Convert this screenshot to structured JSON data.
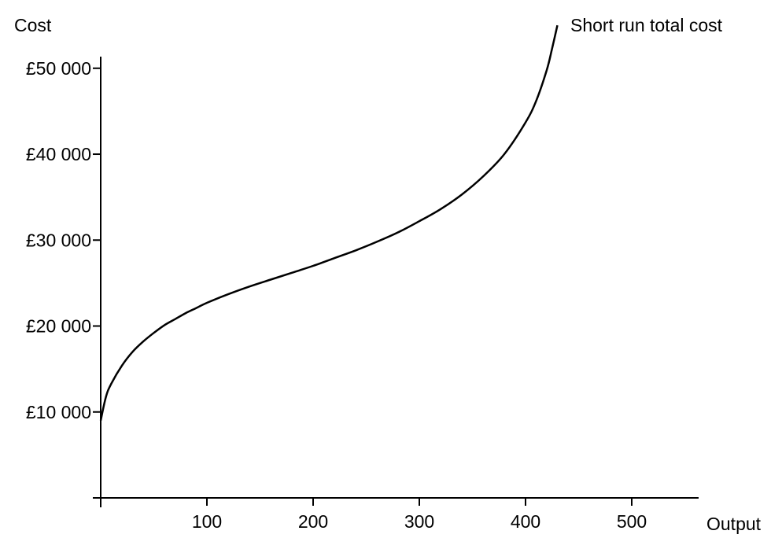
{
  "chart_data": {
    "type": "line",
    "title": "",
    "ylabel": "Cost",
    "xlabel": "Output",
    "x_ticks": [
      "100",
      "200",
      "300",
      "400",
      "500"
    ],
    "x_tick_values": [
      100,
      200,
      300,
      400,
      500
    ],
    "y_ticks": [
      "£10 000",
      "£20 000",
      "£30 000",
      "£40 000",
      "£50 000"
    ],
    "y_tick_values": [
      10000,
      20000,
      30000,
      40000,
      50000
    ],
    "xlim": [
      0,
      560
    ],
    "ylim": [
      0,
      53000
    ],
    "grid": false,
    "series": [
      {
        "name": "Short run total cost",
        "color": "#000000",
        "x": [
          0,
          5,
          10,
          20,
          30,
          40,
          50,
          60,
          70,
          80,
          90,
          100,
          120,
          140,
          160,
          180,
          200,
          220,
          240,
          260,
          280,
          300,
          320,
          340,
          360,
          380,
          400,
          410,
          420,
          425,
          430
        ],
        "y": [
          9000,
          11800,
          13300,
          15400,
          17000,
          18200,
          19200,
          20100,
          20800,
          21500,
          22100,
          22700,
          23700,
          24600,
          25400,
          26200,
          27000,
          27900,
          28800,
          29800,
          30900,
          32200,
          33600,
          35300,
          37400,
          40000,
          43700,
          46200,
          49800,
          52300,
          55000
        ]
      }
    ]
  }
}
